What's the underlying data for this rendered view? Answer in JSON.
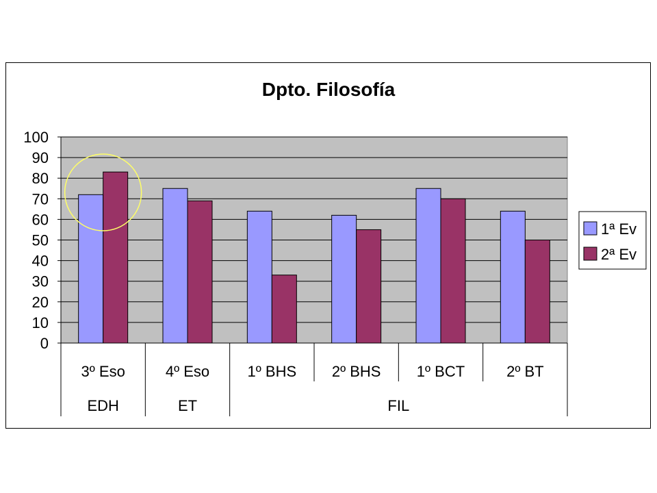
{
  "chart_data": {
    "type": "bar",
    "title": "Dpto. Filosofía",
    "categories": [
      "3º Eso",
      "4º Eso",
      "1º BHS",
      "2º BHS",
      "1º BCT",
      "2º BT"
    ],
    "groups": [
      {
        "label": "EDH",
        "categories": [
          "3º Eso"
        ]
      },
      {
        "label": "ET",
        "categories": [
          "4º Eso"
        ]
      },
      {
        "label": "FIL",
        "categories": [
          "1º BHS",
          "2º BHS",
          "1º BCT",
          "2º BT"
        ]
      }
    ],
    "series": [
      {
        "name": "1ª Ev",
        "values": [
          72,
          75,
          64,
          62,
          75,
          64
        ],
        "color": "#9999ff"
      },
      {
        "name": "2ª Ev",
        "values": [
          83,
          69,
          33,
          55,
          70,
          50
        ],
        "color": "#993366"
      }
    ],
    "ylim": [
      0,
      100
    ],
    "yticks": [
      0,
      10,
      20,
      30,
      40,
      50,
      60,
      70,
      80,
      90,
      100
    ],
    "grid": true,
    "plot_background": "#c0c0c0",
    "legend_position": "right",
    "highlight": {
      "category": "3º Eso",
      "shape": "circle",
      "color": "#ffff66"
    }
  }
}
